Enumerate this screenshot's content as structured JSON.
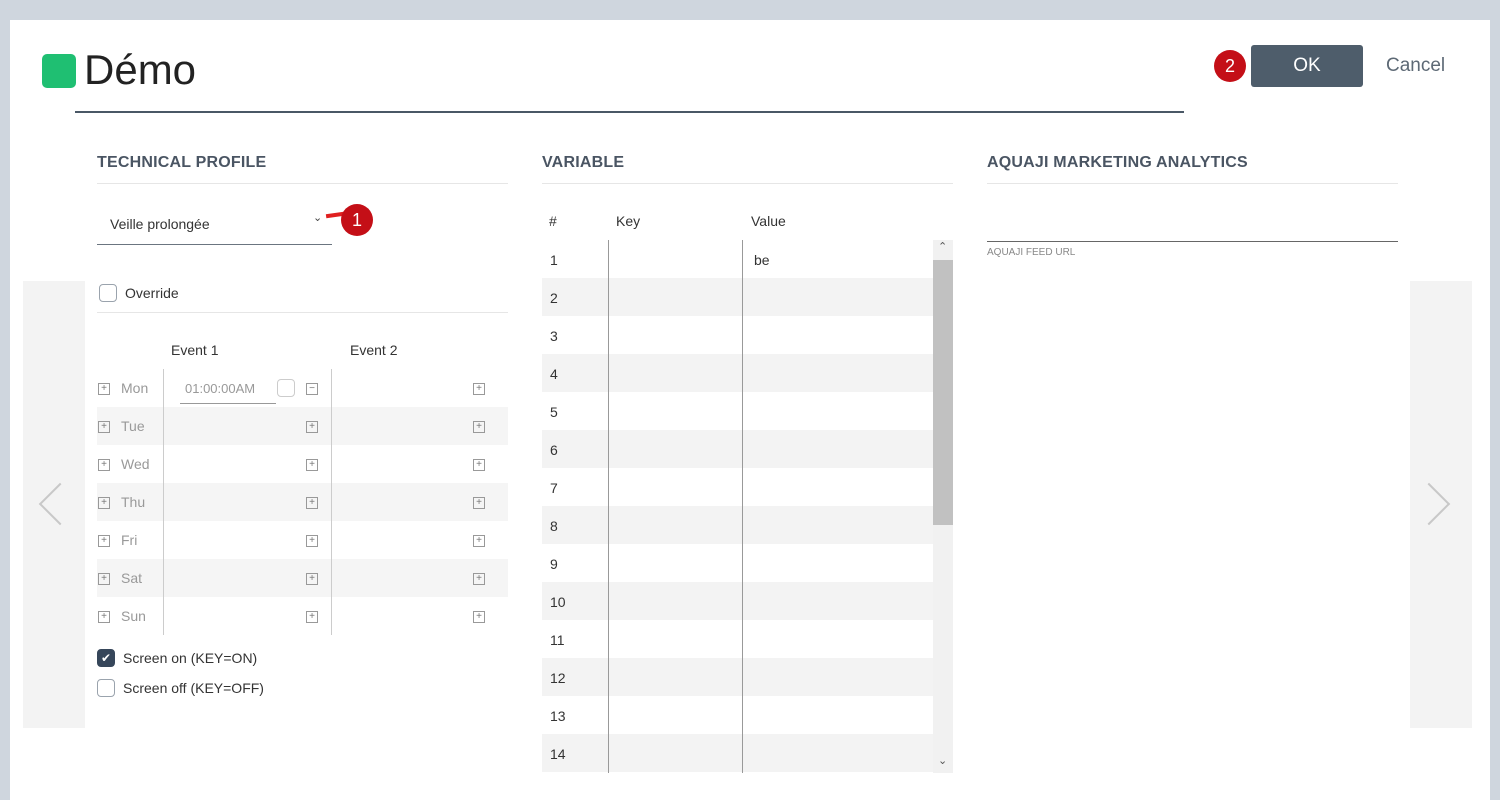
{
  "header": {
    "title": "Démo",
    "ok_label": "OK",
    "cancel_label": "Cancel",
    "badge_ok": "2",
    "accent": "#1fbf72"
  },
  "technical_profile": {
    "heading": "TECHNICAL PROFILE",
    "profile_value": "Veille prolongée",
    "badge_dropdown": "1",
    "override_label": "Override",
    "override_checked": false,
    "event_headers": [
      "Event 1",
      "Event 2"
    ],
    "days": [
      {
        "day": "Mon",
        "event1_time": "01:00:00AM"
      },
      {
        "day": "Tue"
      },
      {
        "day": "Wed"
      },
      {
        "day": "Thu"
      },
      {
        "day": "Fri"
      },
      {
        "day": "Sat"
      },
      {
        "day": "Sun"
      }
    ],
    "screen_on_label": "Screen on (KEY=ON)",
    "screen_on_checked": true,
    "screen_off_label": "Screen off (KEY=OFF)",
    "screen_off_checked": false
  },
  "variable": {
    "heading": "VARIABLE",
    "columns": [
      "#",
      "Key",
      "Value"
    ],
    "rows": [
      {
        "n": "1",
        "key": "",
        "value": "be"
      },
      {
        "n": "2",
        "key": "",
        "value": ""
      },
      {
        "n": "3",
        "key": "",
        "value": ""
      },
      {
        "n": "4",
        "key": "",
        "value": ""
      },
      {
        "n": "5",
        "key": "",
        "value": ""
      },
      {
        "n": "6",
        "key": "",
        "value": ""
      },
      {
        "n": "7",
        "key": "",
        "value": ""
      },
      {
        "n": "8",
        "key": "",
        "value": ""
      },
      {
        "n": "9",
        "key": "",
        "value": ""
      },
      {
        "n": "10",
        "key": "",
        "value": ""
      },
      {
        "n": "11",
        "key": "",
        "value": ""
      },
      {
        "n": "12",
        "key": "",
        "value": ""
      },
      {
        "n": "13",
        "key": "",
        "value": ""
      },
      {
        "n": "14",
        "key": "",
        "value": ""
      }
    ]
  },
  "analytics": {
    "heading": "AQUAJI MARKETING ANALYTICS",
    "feed_url_label": "AQUAJI FEED URL",
    "feed_url_value": ""
  }
}
